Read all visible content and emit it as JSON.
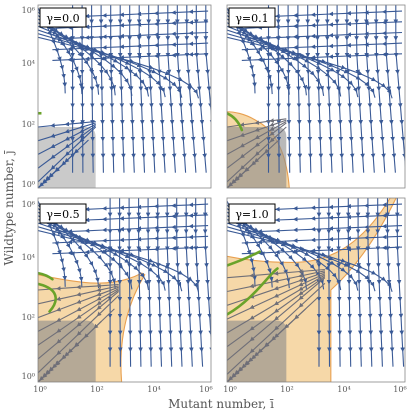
{
  "chart_data": {
    "type": "streamplot",
    "xlabel": "Mutant number, ī",
    "ylabel": "Wildtype number, j̄",
    "x_scale": "log",
    "y_scale": "log",
    "xlim": [
      1,
      1000000
    ],
    "ylim": [
      1,
      1000000
    ],
    "panels": [
      {
        "label": "γ=0.0",
        "gamma": 0.0,
        "x_tick_labels": [
          "",
          "",
          "",
          ""
        ],
        "y_tick_labels": [
          "10⁶",
          "10⁴",
          "10²",
          "10⁰"
        ]
      },
      {
        "label": "γ=0.1",
        "gamma": 0.1,
        "x_tick_labels": [
          "",
          "",
          "",
          ""
        ],
        "y_tick_labels": [
          "",
          "",
          "",
          ""
        ]
      },
      {
        "label": "γ=0.5",
        "gamma": 0.5,
        "x_tick_labels": [
          "10⁰",
          "10²",
          "10⁴",
          "10⁶"
        ],
        "y_tick_labels": [
          "10⁶",
          "10⁴",
          "10²",
          "10⁰"
        ]
      },
      {
        "label": "γ=1.0",
        "gamma": 1.0,
        "x_tick_labels": [
          "10⁰",
          "10²",
          "10⁴",
          "10⁶"
        ],
        "y_tick_labels": [
          "",
          "",
          "",
          ""
        ]
      }
    ],
    "colors": {
      "stream": "#3a5a96",
      "green_curve": "#6aa32a",
      "orange_region": "#f6d8a8",
      "orange_edge": "#e8a050",
      "gray_region": "#8a8a8a"
    }
  }
}
